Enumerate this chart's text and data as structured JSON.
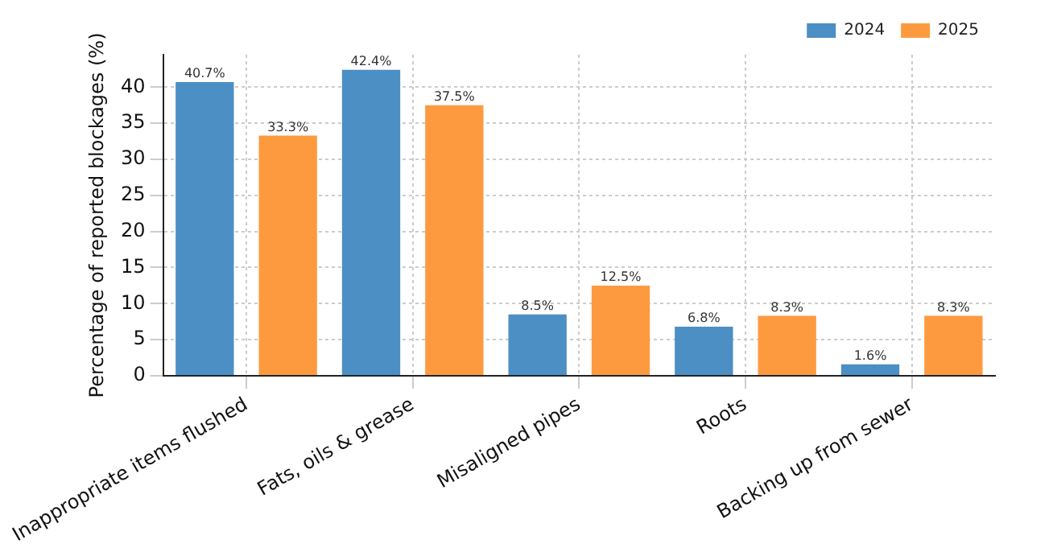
{
  "chart_data": {
    "type": "bar",
    "ylabel": "Percentage of reported blockages (%)",
    "categories": [
      "Inappropriate items flushed",
      "Fats, oils & grease",
      "Misaligned pipes",
      "Roots",
      "Backing up from sewer"
    ],
    "series": [
      {
        "name": "2024",
        "color": "#4c8fc4",
        "values": [
          40.7,
          42.4,
          8.5,
          6.8,
          1.6
        ],
        "value_labels": [
          "40.7%",
          "42.4%",
          "8.5%",
          "6.8%",
          "1.6%"
        ]
      },
      {
        "name": "2025",
        "color": "#fd9a40",
        "values": [
          33.3,
          37.5,
          12.5,
          8.3,
          8.3
        ],
        "value_labels": [
          "33.3%",
          "37.5%",
          "12.5%",
          "8.3%",
          "8.3%"
        ]
      }
    ],
    "ylim": [
      0,
      44.5
    ],
    "yticks": [
      0,
      5,
      10,
      15,
      20,
      25,
      30,
      35,
      40
    ],
    "grid": true,
    "legend": "top right"
  }
}
